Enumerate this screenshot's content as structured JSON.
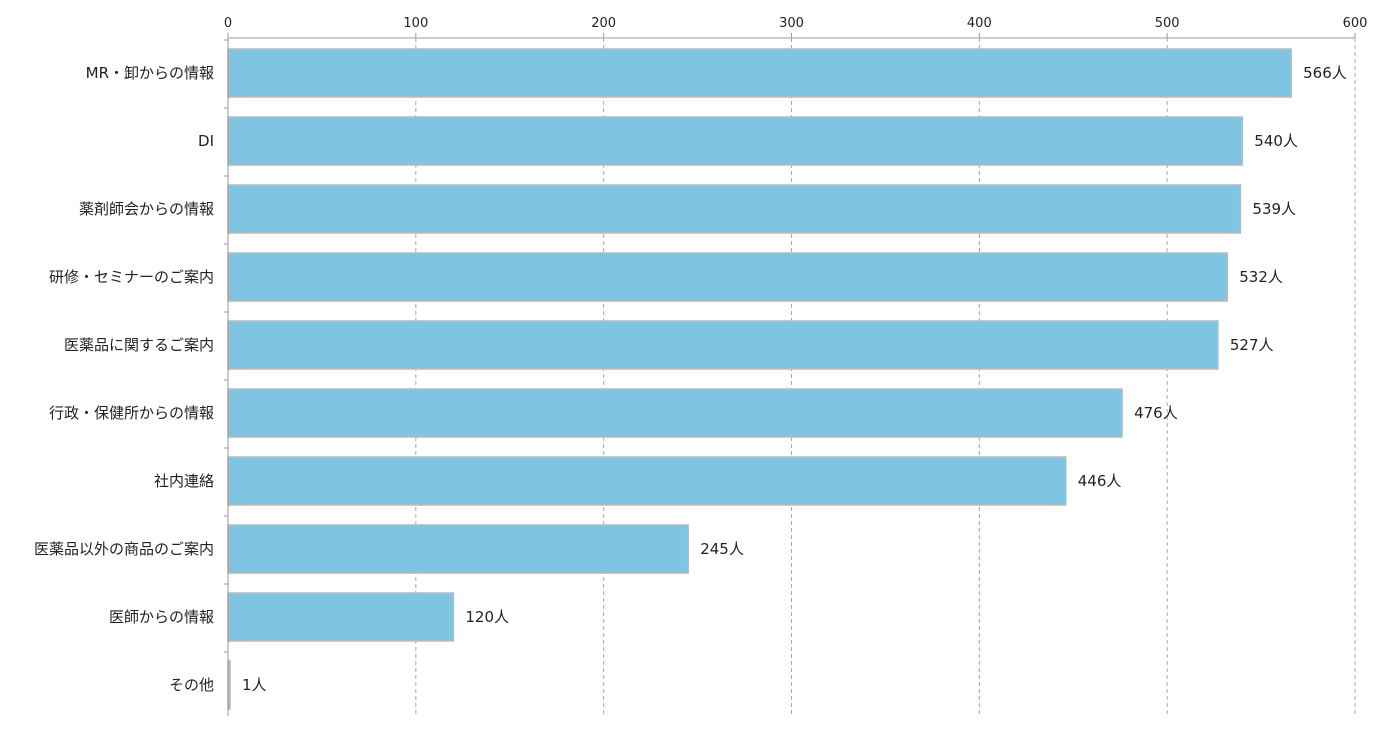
{
  "chart_data": {
    "type": "bar",
    "orientation": "horizontal",
    "title": "",
    "xlabel": "",
    "ylabel": "",
    "xlim": [
      0,
      600
    ],
    "ticks": [
      "0",
      "100",
      "200",
      "300",
      "400",
      "500",
      "600"
    ],
    "tick_values": [
      0,
      100,
      200,
      300,
      400,
      500,
      600
    ],
    "x_axis_position": "top",
    "grid": true,
    "grid_style": "dashed vertical",
    "legend": "none",
    "bar_color": "#7fc5e3",
    "bar_border_color": "#b9b9b9",
    "categories": [
      "MR・卸からの情報",
      "DI",
      "薬剤師会からの情報",
      "研修・セミナーのご案内",
      "医薬品に関するご案内",
      "行政・保健所からの情報",
      "社内連絡",
      "医薬品以外の商品のご案内",
      "医師からの情報",
      "その他"
    ],
    "values": [
      566,
      540,
      539,
      532,
      527,
      476,
      446,
      245,
      120,
      1
    ],
    "value_labels": [
      "566人",
      "540人",
      "539人",
      "532人",
      "527人",
      "476人",
      "446人",
      "245人",
      "120人",
      "1人"
    ]
  }
}
